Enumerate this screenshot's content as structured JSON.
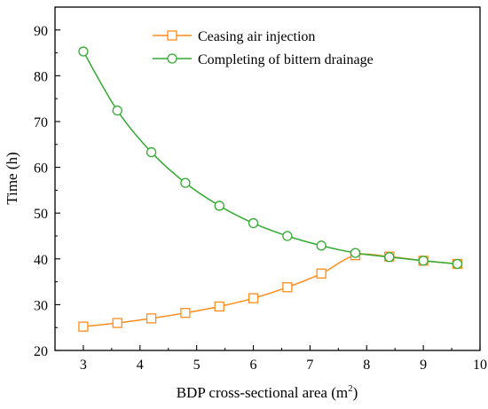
{
  "chart_data": {
    "type": "line",
    "xlabel": "BDP cross-sectional area (m",
    "xlabel_sup": "2",
    "xlabel_close": ")",
    "ylabel": "Time (h)",
    "xlim": [
      2.5,
      10
    ],
    "ylim": [
      20,
      95
    ],
    "xticks": [
      "3",
      "4",
      "5",
      "6",
      "7",
      "8",
      "9",
      "10"
    ],
    "yticks": [
      "20",
      "30",
      "40",
      "50",
      "60",
      "70",
      "80",
      "90"
    ],
    "grid": false,
    "legend_position": "top-right",
    "x": [
      3.0,
      3.6,
      4.2,
      4.8,
      5.4,
      6.0,
      6.6,
      7.2,
      7.8,
      8.4,
      9.0,
      9.6
    ],
    "series": [
      {
        "name": "Ceasing air injection",
        "marker": "square",
        "color": "#ff8c1a",
        "values": [
          25.2,
          26.0,
          27.0,
          28.2,
          29.6,
          31.4,
          33.8,
          36.8,
          40.8,
          40.5,
          39.6,
          38.9
        ]
      },
      {
        "name": "Completing of bittern drainage",
        "marker": "circle",
        "color": "#33aa33",
        "values": [
          85.3,
          72.4,
          63.3,
          56.6,
          51.6,
          47.8,
          45.0,
          42.9,
          41.3,
          40.4,
          39.6,
          38.9
        ]
      }
    ]
  }
}
